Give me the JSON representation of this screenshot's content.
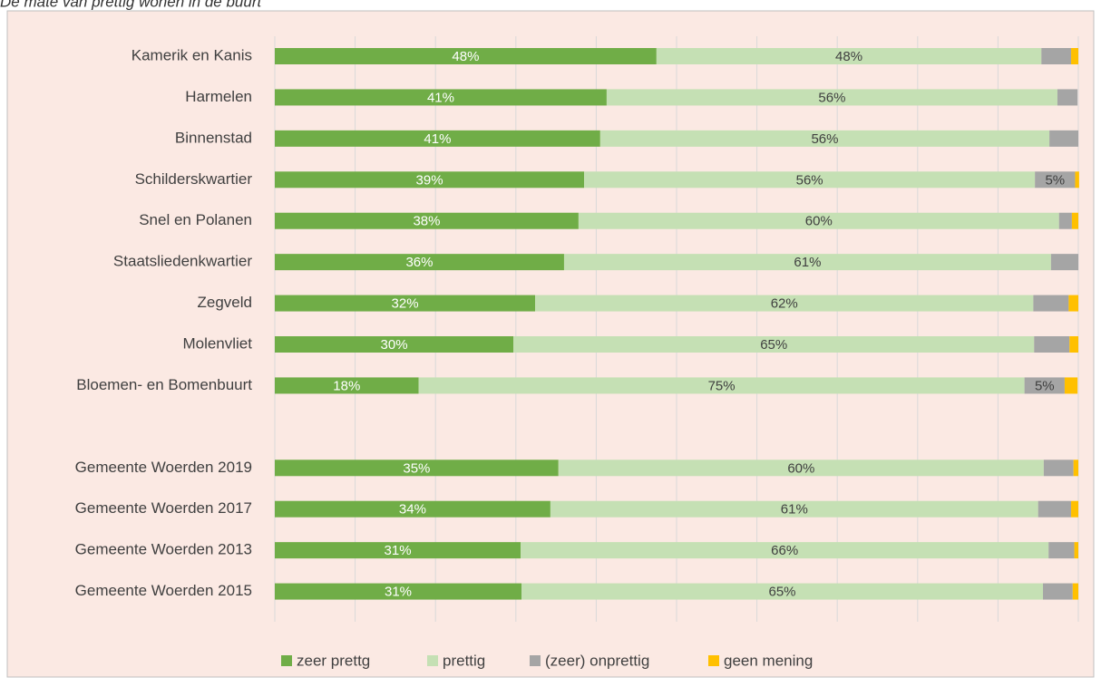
{
  "chart_data": {
    "type": "stacked-barh",
    "title": "De mate van prettig wonen in de buurt",
    "categories": [
      "Kamerik en Kanis",
      "Harmelen",
      "Binnenstad",
      "Schilderskwartier",
      "Snel en Polanen",
      "Staatsliedenkwartier",
      "Zegveld",
      "Molenvliet",
      "Bloemen- en Bomenbuurt",
      null,
      "Gemeente Woerden 2019",
      "Gemeente Woerden 2017",
      "Gemeente Woerden 2013",
      "Gemeente Woerden 2015"
    ],
    "series": [
      {
        "name": "zeer prettg",
        "color": "#70ad47",
        "values": [
          47.5,
          41.3,
          40.5,
          38.5,
          37.8,
          36.0,
          32.4,
          29.7,
          17.9,
          null,
          35.3,
          34.3,
          30.6,
          30.7
        ],
        "value_labels": [
          "48%",
          "41%",
          "41%",
          "39%",
          "38%",
          "36%",
          "32%",
          "30%",
          "18%",
          null,
          "35%",
          "34%",
          "31%",
          "31%"
        ]
      },
      {
        "name": "prettig",
        "color": "#c5e0b4",
        "values": [
          47.9,
          56.1,
          55.9,
          56.1,
          59.8,
          60.6,
          62.0,
          64.8,
          75.4,
          null,
          60.4,
          60.7,
          65.7,
          64.9
        ],
        "value_labels": [
          "48%",
          "56%",
          "56%",
          "56%",
          "60%",
          "61%",
          "62%",
          "65%",
          "75%",
          null,
          "60%",
          "61%",
          "66%",
          "65%"
        ]
      },
      {
        "name": "(zeer) onprettig",
        "color": "#a5a5a5",
        "values": [
          3.7,
          2.5,
          3.6,
          5.0,
          1.6,
          3.4,
          4.4,
          4.4,
          5.0,
          null,
          3.7,
          4.1,
          3.2,
          3.7
        ],
        "value_labels": [
          null,
          null,
          null,
          "5%",
          null,
          null,
          null,
          null,
          "5%",
          null,
          null,
          null,
          null,
          null
        ]
      },
      {
        "name": "geen mening",
        "color": "#ffc000",
        "values": [
          0.9,
          0,
          0,
          0.5,
          0.8,
          0,
          1.2,
          1.1,
          1.6,
          null,
          0.6,
          0.9,
          0.5,
          0.7
        ],
        "value_labels": [
          null,
          null,
          null,
          null,
          null,
          null,
          null,
          null,
          null,
          null,
          null,
          null,
          null,
          null
        ]
      }
    ],
    "xlim": [
      0,
      100
    ],
    "xticks": [
      0,
      10,
      20,
      30,
      40,
      50,
      60,
      70,
      80,
      90,
      100
    ],
    "grid": true,
    "legend": "bottom"
  }
}
